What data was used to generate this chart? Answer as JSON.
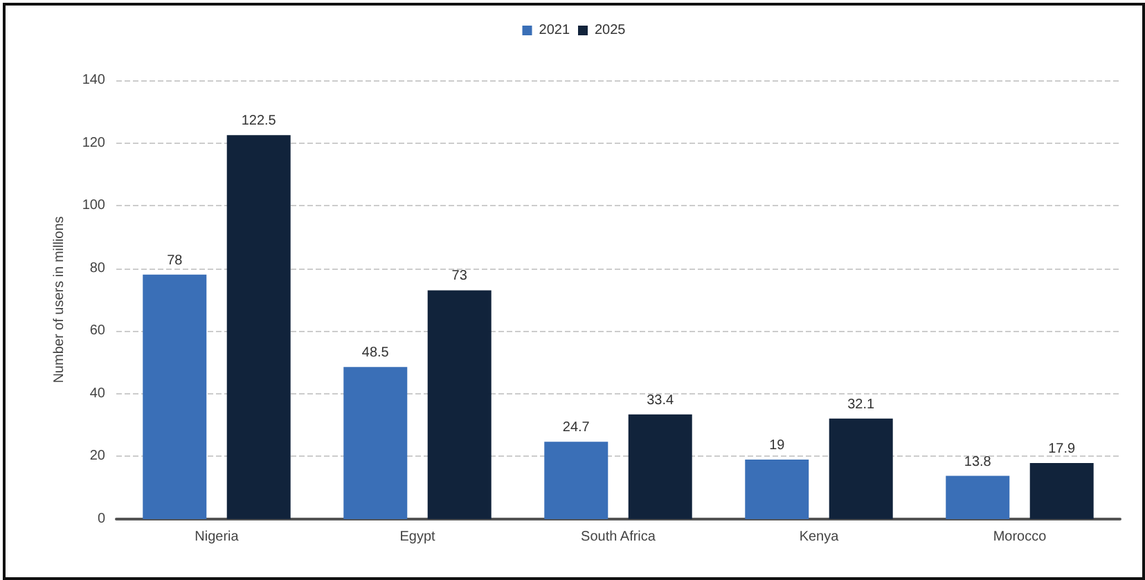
{
  "chart_data": {
    "type": "bar",
    "ylabel": "Number of users in millions",
    "categories": [
      "Nigeria",
      "Egypt",
      "South Africa",
      "Kenya",
      "Morocco"
    ],
    "series": [
      {
        "name": "2021",
        "color": "#3a6fb7",
        "values": [
          78,
          48.5,
          24.7,
          19,
          13.8
        ]
      },
      {
        "name": "2025",
        "color": "#11233b",
        "values": [
          122.5,
          73,
          33.4,
          32.1,
          17.9
        ]
      }
    ],
    "ylim": [
      0,
      140
    ],
    "yticks": [
      0,
      20,
      40,
      60,
      80,
      100,
      120,
      140
    ],
    "grid": "y",
    "legend": "top",
    "data_labels": true
  }
}
